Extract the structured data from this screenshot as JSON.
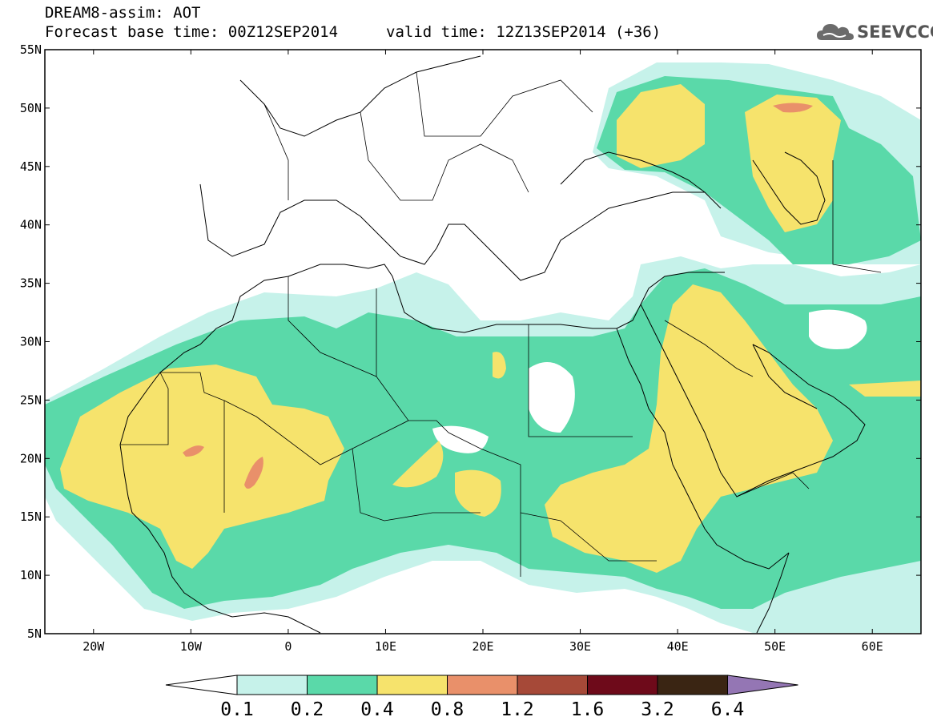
{
  "header": {
    "title": "DREAM8-assim: AOT",
    "base_time": "Forecast base time: 00Z12SEP2014",
    "valid_time": "valid time: 12Z13SEP2014 (+36)"
  },
  "logo": {
    "text": "SEEVCCC",
    "icon": "cloud-icon"
  },
  "map": {
    "lat_labels": [
      "55N",
      "50N",
      "45N",
      "40N",
      "35N",
      "30N",
      "25N",
      "20N",
      "15N",
      "10N",
      "5N"
    ],
    "lon_labels": [
      "20W",
      "10W",
      "0",
      "10E",
      "20E",
      "30E",
      "40E",
      "50E",
      "60E"
    ],
    "extent": {
      "lon_min": -25,
      "lon_max": 65,
      "lat_min": 5,
      "lat_max": 55
    },
    "region": "North Africa, Middle East and Europe",
    "colors": {
      "water": "#ffffff",
      "land_lines": "#000000",
      "c01": "#c6f2ea",
      "c02": "#5ad9a9",
      "c04": "#f6e36c",
      "c08": "#e9906a",
      "c12": "#a64938",
      "c16": "#6e0a1a",
      "c32": "#3a2513",
      "c64": "#9476b4"
    }
  },
  "colorbar": {
    "labels": [
      "0.1",
      "0.2",
      "0.4",
      "0.8",
      "1.2",
      "1.6",
      "3.2",
      "6.4"
    ],
    "colors": [
      "#c6f2ea",
      "#5ad9a9",
      "#f6e36c",
      "#e9906a",
      "#a64938",
      "#6e0a1a",
      "#3a2513"
    ],
    "low_arrow_color": "#ffffff",
    "high_arrow_color": "#9476b4"
  }
}
